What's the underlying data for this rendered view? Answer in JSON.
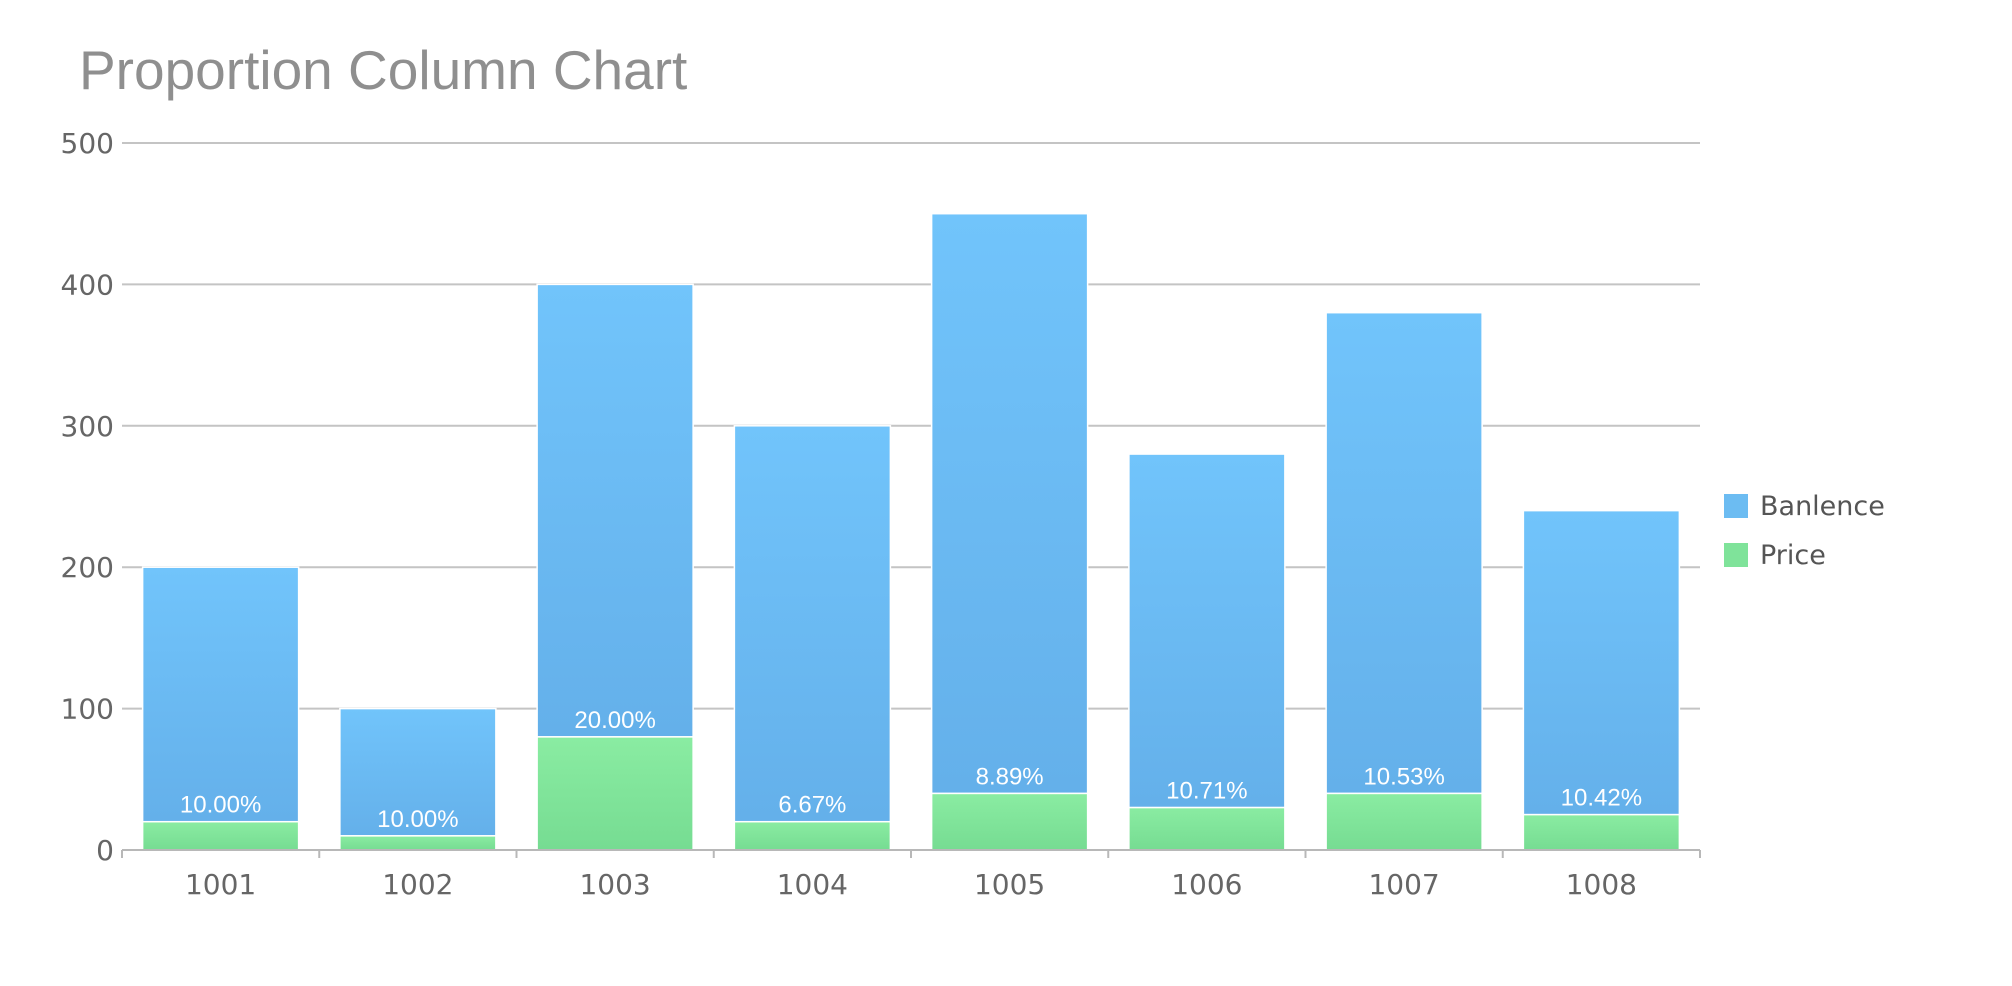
{
  "chart_data": {
    "type": "bar",
    "stacked": true,
    "title": "Proportion Column Chart",
    "xlabel": "",
    "ylabel": "",
    "ylim": [
      0,
      500
    ],
    "yticks": [
      0,
      100,
      200,
      300,
      400,
      500
    ],
    "grid": true,
    "legend_position": "right",
    "categories": [
      "1001",
      "1002",
      "1003",
      "1004",
      "1005",
      "1006",
      "1007",
      "1008"
    ],
    "series": [
      {
        "name": "Price",
        "color": "#7fe39a",
        "values": [
          20,
          10,
          80,
          20,
          40,
          30,
          40,
          25
        ]
      },
      {
        "name": "Banlence",
        "color": "#6cbcf2",
        "values": [
          180,
          90,
          320,
          280,
          410,
          250,
          340,
          215
        ]
      }
    ],
    "data_labels": [
      "10.00%",
      "10.00%",
      "20.00%",
      "6.67%",
      "8.89%",
      "10.71%",
      "10.53%",
      "10.42%"
    ]
  },
  "legend": {
    "items": [
      {
        "label": "Banlence",
        "color": "#6cbcf2"
      },
      {
        "label": "Price",
        "color": "#7fe39a"
      }
    ]
  }
}
